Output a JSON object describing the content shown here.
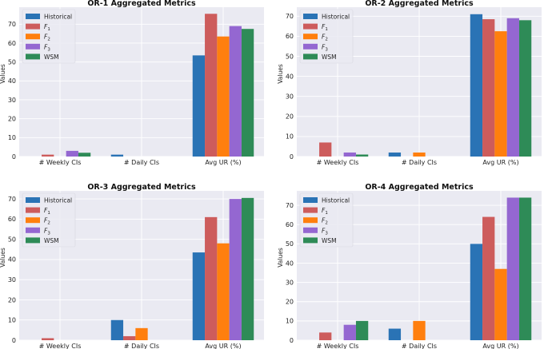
{
  "colors": {
    "Historical": "#2a73b5",
    "F1": "#cd5c5c",
    "F2": "#ff7f0e",
    "F3": "#9467d1",
    "WSM": "#2e8b57",
    "plot_bg": "#eaeaf2",
    "grid": "#ffffff"
  },
  "legend": [
    {
      "key": "Historical",
      "base": "Historical",
      "sub": ""
    },
    {
      "key": "F1",
      "base": "F",
      "sub": "1"
    },
    {
      "key": "F2",
      "base": "F",
      "sub": "2"
    },
    {
      "key": "F3",
      "base": "F",
      "sub": "3"
    },
    {
      "key": "WSM",
      "base": "WSM",
      "sub": ""
    }
  ],
  "chart_data": [
    {
      "type": "bar",
      "title": "OR-1 Aggregated Metrics",
      "xlabel": "",
      "ylabel": "Values",
      "categories": [
        "# Weekly CIs",
        "# Daily CIs",
        "Avg UR (%)"
      ],
      "yticks": [
        0,
        10,
        20,
        30,
        40,
        50,
        60,
        70
      ],
      "ylim": [
        0,
        79
      ],
      "grid": true,
      "legend_position": "top-left",
      "series": [
        {
          "name": "Historical",
          "values": [
            0,
            1,
            53.5
          ]
        },
        {
          "name": "F1",
          "values": [
            1,
            0,
            75.5
          ]
        },
        {
          "name": "F2",
          "values": [
            0,
            0,
            63.5
          ]
        },
        {
          "name": "F3",
          "values": [
            3,
            0,
            69
          ]
        },
        {
          "name": "WSM",
          "values": [
            2,
            0,
            67.5
          ]
        }
      ]
    },
    {
      "type": "bar",
      "title": "OR-2 Aggregated Metrics",
      "xlabel": "",
      "ylabel": "Values",
      "categories": [
        "# Weekly CIs",
        "# Daily CIs",
        "Avg UR (%)"
      ],
      "yticks": [
        0,
        10,
        20,
        30,
        40,
        50,
        60,
        70
      ],
      "ylim": [
        0,
        74.5
      ],
      "grid": true,
      "legend_position": "top-left",
      "series": [
        {
          "name": "Historical",
          "values": [
            0,
            2,
            71
          ]
        },
        {
          "name": "F1",
          "values": [
            7,
            0,
            68.5
          ]
        },
        {
          "name": "F2",
          "values": [
            0,
            2,
            62.5
          ]
        },
        {
          "name": "F3",
          "values": [
            2,
            0,
            69
          ]
        },
        {
          "name": "WSM",
          "values": [
            1,
            0,
            68
          ]
        }
      ]
    },
    {
      "type": "bar",
      "title": "OR-3 Aggregated Metrics",
      "xlabel": "",
      "ylabel": "Values",
      "categories": [
        "# Weekly CIs",
        "# Daily CIs",
        "Avg UR (%)"
      ],
      "yticks": [
        0,
        10,
        20,
        30,
        40,
        50,
        60,
        70
      ],
      "ylim": [
        0,
        74
      ],
      "grid": true,
      "legend_position": "top-left",
      "series": [
        {
          "name": "Historical",
          "values": [
            0,
            10,
            43.5
          ]
        },
        {
          "name": "F1",
          "values": [
            1,
            2,
            61
          ]
        },
        {
          "name": "F2",
          "values": [
            0,
            6,
            48
          ]
        },
        {
          "name": "F3",
          "values": [
            0,
            0,
            70
          ]
        },
        {
          "name": "WSM",
          "values": [
            0,
            0,
            70.5
          ]
        }
      ]
    },
    {
      "type": "bar",
      "title": "OR-4 Aggregated Metrics",
      "xlabel": "",
      "ylabel": "Values",
      "categories": [
        "# Weekly CIs",
        "# Daily CIs",
        "Avg UR (%)"
      ],
      "yticks": [
        0,
        10,
        20,
        30,
        40,
        50,
        60,
        70
      ],
      "ylim": [
        0,
        77.5
      ],
      "grid": true,
      "legend_position": "top-left",
      "series": [
        {
          "name": "Historical",
          "values": [
            0,
            6,
            50
          ]
        },
        {
          "name": "F1",
          "values": [
            4,
            0,
            64
          ]
        },
        {
          "name": "F2",
          "values": [
            0,
            10,
            37
          ]
        },
        {
          "name": "F3",
          "values": [
            8,
            0,
            74
          ]
        },
        {
          "name": "WSM",
          "values": [
            10,
            0,
            74
          ]
        }
      ]
    }
  ]
}
